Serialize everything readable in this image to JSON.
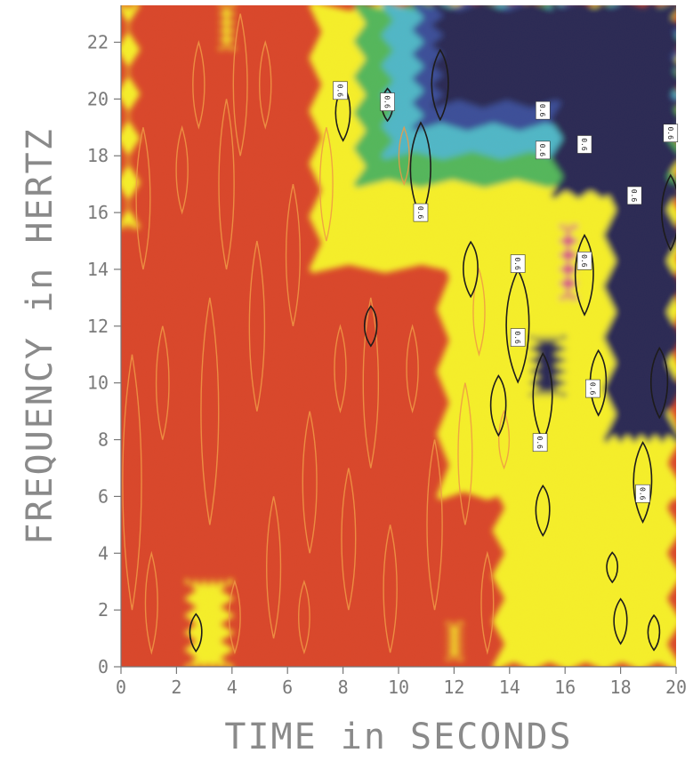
{
  "chart_data": {
    "type": "heatmap",
    "title": "",
    "xlabel": "TIME in SECONDS",
    "ylabel": "FREQUENCY in HERTZ",
    "xlim": [
      0,
      20
    ],
    "ylim": [
      0,
      23.3
    ],
    "x_ticks": [
      "0",
      "2",
      "4",
      "6",
      "8",
      "10",
      "12",
      "14",
      "16",
      "18",
      "20"
    ],
    "y_ticks": [
      "0",
      "2",
      "4",
      "6",
      "8",
      "10",
      "12",
      "14",
      "16",
      "18",
      "20",
      "22"
    ],
    "colors": {
      "background_level": "#d9472b",
      "level_orange": "#f07a2a",
      "level_yellow": "#f5f02a",
      "level_green": "#53b85c",
      "level_cyan": "#4fb8c8",
      "level_blue": "#3a4f9a",
      "level_dark": "#2b2b55",
      "contour_line": "#1a1a1a",
      "magenta_spot": "#d43a8a"
    },
    "regions": [
      {
        "level": "yellow",
        "x": [
          6.9,
          20
        ],
        "y": [
          14,
          23.3
        ]
      },
      {
        "level": "yellow",
        "x": [
          11.5,
          20
        ],
        "y": [
          6,
          17
        ]
      },
      {
        "level": "yellow",
        "x": [
          13.5,
          20
        ],
        "y": [
          0,
          8
        ]
      },
      {
        "level": "yellow",
        "x": [
          2.4,
          3.9
        ],
        "y": [
          0,
          3
        ]
      },
      {
        "level": "yellow",
        "x": [
          3.6,
          4.0
        ],
        "y": [
          21.8,
          23.3
        ]
      },
      {
        "level": "yellow",
        "x": [
          0.0,
          0.5
        ],
        "y": [
          15.5,
          23.3
        ]
      },
      {
        "level": "yellow",
        "x": [
          11.8,
          12.2
        ],
        "y": [
          0.3,
          1.5
        ]
      },
      {
        "level": "green",
        "x": [
          8.5,
          20
        ],
        "y": [
          17,
          23.3
        ]
      },
      {
        "level": "cyan",
        "x": [
          9.5,
          20
        ],
        "y": [
          18,
          23.3
        ]
      },
      {
        "level": "blue",
        "x": [
          10.6,
          20
        ],
        "y": [
          19,
          23.3
        ]
      },
      {
        "level": "dark",
        "x": [
          11.3,
          20
        ],
        "y": [
          19.8,
          23.3
        ]
      },
      {
        "level": "dark",
        "x": [
          15.6,
          20
        ],
        "y": [
          16.6,
          23.3
        ]
      },
      {
        "level": "dark",
        "x": [
          17.5,
          20
        ],
        "y": [
          8,
          17
        ]
      },
      {
        "level": "dark",
        "x": [
          14.8,
          15.9
        ],
        "y": [
          9.6,
          11.6
        ]
      },
      {
        "level": "magenta",
        "x": [
          15.9,
          16.3
        ],
        "y": [
          13,
          15.5
        ]
      }
    ],
    "contour_labels": [
      {
        "x": 7.9,
        "y": 20.3,
        "text": "0.6"
      },
      {
        "x": 9.6,
        "y": 19.9,
        "text": "0.6"
      },
      {
        "x": 10.8,
        "y": 16.0,
        "text": "0.6"
      },
      {
        "x": 15.2,
        "y": 19.6,
        "text": "0.6"
      },
      {
        "x": 15.2,
        "y": 18.2,
        "text": "0.6"
      },
      {
        "x": 16.7,
        "y": 18.4,
        "text": "0.6"
      },
      {
        "x": 14.3,
        "y": 14.2,
        "text": "0.6"
      },
      {
        "x": 16.7,
        "y": 14.3,
        "text": "0.6"
      },
      {
        "x": 18.5,
        "y": 16.6,
        "text": "0.6"
      },
      {
        "x": 19.8,
        "y": 18.8,
        "text": "0.6"
      },
      {
        "x": 14.3,
        "y": 11.6,
        "text": "0.6"
      },
      {
        "x": 17.0,
        "y": 9.8,
        "text": "0.6"
      },
      {
        "x": 15.1,
        "y": 7.9,
        "text": "0.6"
      },
      {
        "x": 18.8,
        "y": 6.1,
        "text": "0.6"
      }
    ]
  }
}
